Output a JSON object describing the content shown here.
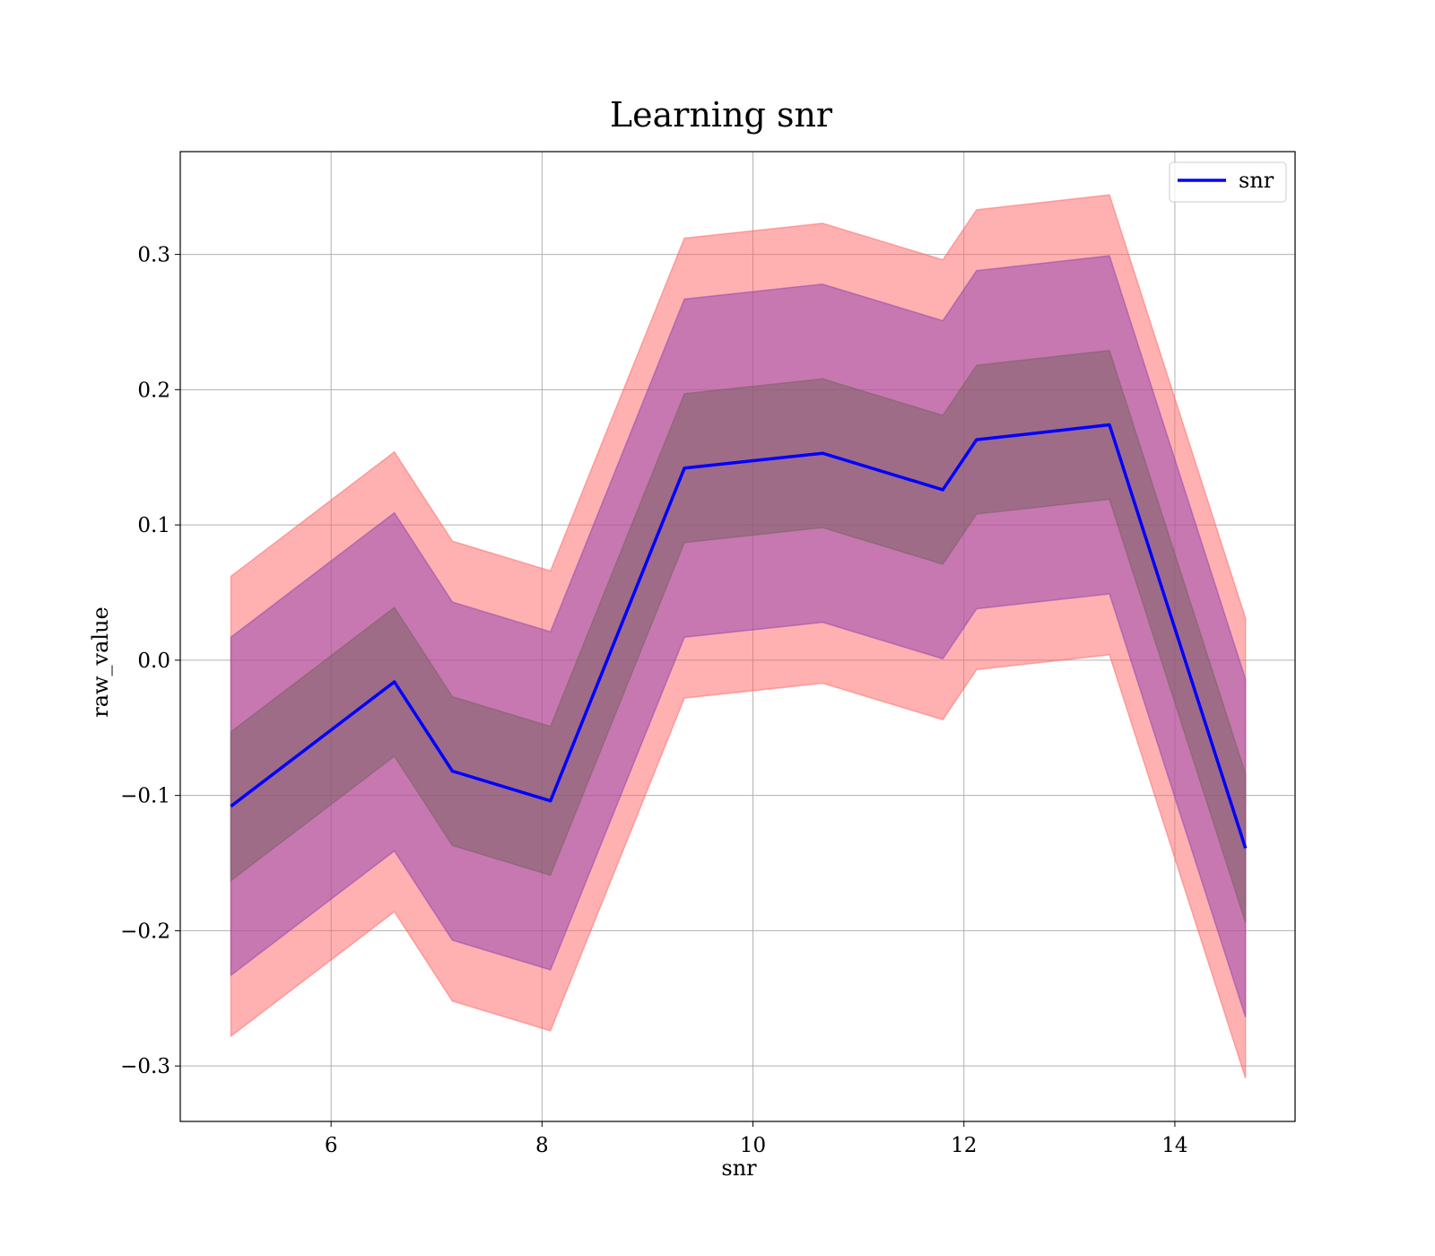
{
  "chart_data": {
    "type": "line",
    "title": "Learning snr",
    "xlabel": "snr",
    "ylabel": "raw_value",
    "xlim": [
      4.57,
      15.14
    ],
    "ylim": [
      -0.341,
      0.376
    ],
    "xticks": [
      6,
      8,
      10,
      12,
      14
    ],
    "yticks": [
      -0.3,
      -0.2,
      -0.1,
      0.0,
      0.1,
      0.2,
      0.3
    ],
    "ytick_labels": [
      "−0.3",
      "−0.2",
      "−0.1",
      "0.0",
      "0.1",
      "0.2",
      "0.3"
    ],
    "grid": true,
    "legend_position": "top-right",
    "x": [
      5.05,
      6.6,
      7.15,
      8.08,
      9.35,
      10.66,
      11.8,
      12.12,
      13.38,
      14.67
    ],
    "series": [
      {
        "name": "snr",
        "color": "#0000ff",
        "values": [
          -0.108,
          -0.016,
          -0.082,
          -0.104,
          0.142,
          0.153,
          0.126,
          0.163,
          0.174,
          -0.139
        ]
      }
    ],
    "bands": [
      {
        "color": "#ff6464",
        "opacity": 0.5,
        "lower": [
          -0.278,
          -0.186,
          -0.252,
          -0.274,
          -0.028,
          -0.017,
          -0.044,
          -0.007,
          0.004,
          -0.309
        ],
        "upper": [
          0.062,
          0.154,
          0.088,
          0.066,
          0.312,
          0.323,
          0.296,
          0.333,
          0.344,
          0.031
        ]
      },
      {
        "color": "#9040b0",
        "opacity": 0.5,
        "lower": [
          -0.233,
          -0.141,
          -0.207,
          -0.229,
          0.017,
          0.028,
          0.001,
          0.038,
          0.049,
          -0.264
        ],
        "upper": [
          0.017,
          0.109,
          0.043,
          0.021,
          0.267,
          0.278,
          0.251,
          0.288,
          0.299,
          -0.014
        ]
      },
      {
        "color": "#786060",
        "opacity": 0.5,
        "lower": [
          -0.163,
          -0.071,
          -0.137,
          -0.159,
          0.087,
          0.098,
          0.071,
          0.108,
          0.119,
          -0.194
        ],
        "upper": [
          -0.053,
          0.039,
          -0.027,
          -0.049,
          0.197,
          0.208,
          0.181,
          0.218,
          0.229,
          -0.084
        ]
      }
    ]
  }
}
